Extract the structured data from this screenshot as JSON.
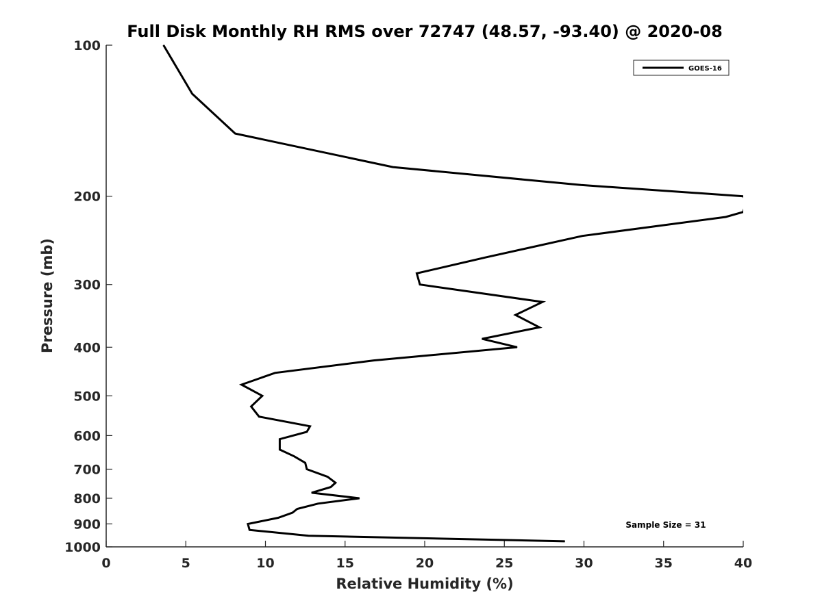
{
  "chart_data": {
    "type": "line",
    "title": "Full Disk Monthly RH RMS over 72747 (48.57, -93.40) @ 2020-08",
    "xlabel": "Relative Humidity (%)",
    "ylabel": "Pressure (mb)",
    "xlim": [
      0,
      40
    ],
    "ylim": [
      100,
      1000
    ],
    "y_scale": "log",
    "y_reversed": true,
    "x_ticks": [
      "0",
      "5",
      "10",
      "15",
      "20",
      "25",
      "30",
      "35",
      "40"
    ],
    "x_tick_values": [
      0,
      5,
      10,
      15,
      20,
      25,
      30,
      35,
      40
    ],
    "y_ticks": [
      "100",
      "200",
      "300",
      "400",
      "500",
      "600",
      "700",
      "800",
      "900",
      "1000"
    ],
    "y_tick_values": [
      100,
      200,
      300,
      400,
      500,
      600,
      700,
      800,
      900,
      1000
    ],
    "grid": false,
    "legend_position": "top-right",
    "series": [
      {
        "name": "GOES-16",
        "color": "#000000",
        "points": [
          [
            3.6,
            100
          ],
          [
            5.4,
            125
          ],
          [
            8.1,
            150
          ],
          [
            18.0,
            175
          ],
          [
            29.8,
            190
          ],
          [
            40.0,
            200
          ],
          [
            40.2,
            205
          ],
          [
            40.0,
            215
          ],
          [
            38.9,
            220
          ],
          [
            29.9,
            240
          ],
          [
            23.8,
            265
          ],
          [
            19.5,
            285
          ],
          [
            19.7,
            300
          ],
          [
            27.4,
            325
          ],
          [
            25.7,
            345
          ],
          [
            27.2,
            365
          ],
          [
            23.6,
            385
          ],
          [
            25.8,
            400
          ],
          [
            16.8,
            425
          ],
          [
            10.6,
            450
          ],
          [
            8.5,
            475
          ],
          [
            9.8,
            500
          ],
          [
            9.1,
            525
          ],
          [
            9.6,
            550
          ],
          [
            12.8,
            575
          ],
          [
            12.6,
            590
          ],
          [
            10.9,
            610
          ],
          [
            10.9,
            640
          ],
          [
            11.8,
            660
          ],
          [
            12.5,
            680
          ],
          [
            12.6,
            700
          ],
          [
            13.9,
            725
          ],
          [
            14.4,
            745
          ],
          [
            14.1,
            760
          ],
          [
            12.9,
            780
          ],
          [
            15.9,
            800
          ],
          [
            13.3,
            820
          ],
          [
            12.0,
            840
          ],
          [
            11.7,
            855
          ],
          [
            10.8,
            875
          ],
          [
            8.9,
            900
          ],
          [
            9.0,
            925
          ],
          [
            12.7,
            950
          ],
          [
            28.8,
            975
          ]
        ]
      }
    ],
    "annotation": "Sample Size = 31"
  }
}
